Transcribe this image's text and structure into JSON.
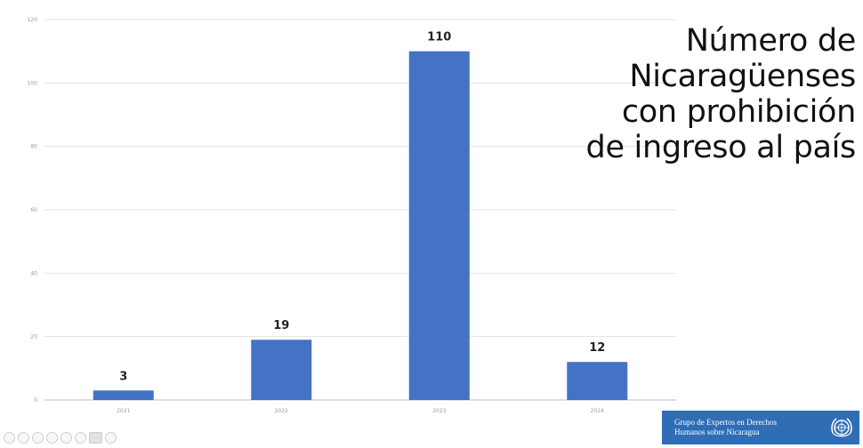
{
  "title_lines": [
    "Número de",
    "Nicaragüenses",
    "con prohibición",
    "de ingreso al país"
  ],
  "chart_data": {
    "type": "bar",
    "categories": [
      "2021",
      "2022",
      "2023",
      "2024"
    ],
    "values": [
      3,
      19,
      110,
      12
    ],
    "title": "Número de Nicaragüenses con prohibición de ingreso al país",
    "xlabel": "",
    "ylabel": "",
    "ylim": [
      0,
      120
    ],
    "yticks": [
      0,
      20,
      40,
      60,
      80,
      100,
      120
    ],
    "grid": true,
    "bar_color": "#4472c4",
    "data_labels": true,
    "legend": "none"
  },
  "logo": {
    "line1": "Grupo de Expertos en Derechos",
    "line2": "Humanos sobre Nicaragua",
    "background": "#2f6db5",
    "emblem": "un-emblem-icon"
  },
  "toolbar": {
    "icons": [
      "toolbar-icon",
      "toolbar-icon",
      "toolbar-icon",
      "toolbar-icon",
      "toolbar-icon",
      "toolbar-icon",
      "toolbar-icon",
      "toolbar-icon"
    ]
  }
}
